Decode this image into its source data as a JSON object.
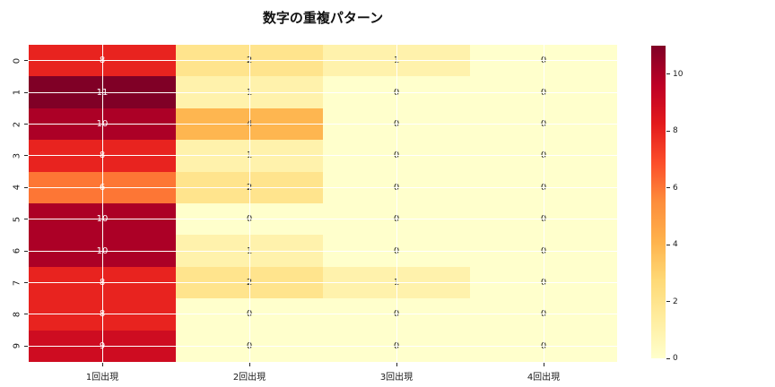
{
  "chart_data": {
    "type": "heatmap",
    "title": "数字の重複パターン",
    "columns": [
      "1回出現",
      "2回出現",
      "3回出現",
      "4回出現"
    ],
    "rows": [
      "0",
      "1",
      "2",
      "3",
      "4",
      "5",
      "6",
      "7",
      "8",
      "9"
    ],
    "values": [
      [
        8,
        2,
        1,
        0
      ],
      [
        11,
        1,
        0,
        0
      ],
      [
        10,
        4,
        0,
        0
      ],
      [
        8,
        1,
        0,
        0
      ],
      [
        6,
        2,
        0,
        0
      ],
      [
        10,
        0,
        0,
        0
      ],
      [
        10,
        1,
        0,
        0
      ],
      [
        8,
        2,
        1,
        0
      ],
      [
        8,
        0,
        0,
        0
      ],
      [
        9,
        0,
        0,
        0
      ]
    ],
    "vmin": 0,
    "vmax": 11,
    "colormap_name": "YlOrRd",
    "colormap_stops": [
      "#ffffcc",
      "#ffeda0",
      "#fed976",
      "#feb24c",
      "#fd8d3c",
      "#fc4e2a",
      "#e31a1c",
      "#bd0026",
      "#800026"
    ],
    "colorbar_ticks": [
      0,
      2,
      4,
      6,
      8,
      10
    ],
    "colorbar_position": "right",
    "grid": true,
    "grid_color": "#ffffff",
    "annotation_dark_color": "#262626",
    "annotation_light_color": "#ffffff",
    "tick_color": "#262626"
  }
}
